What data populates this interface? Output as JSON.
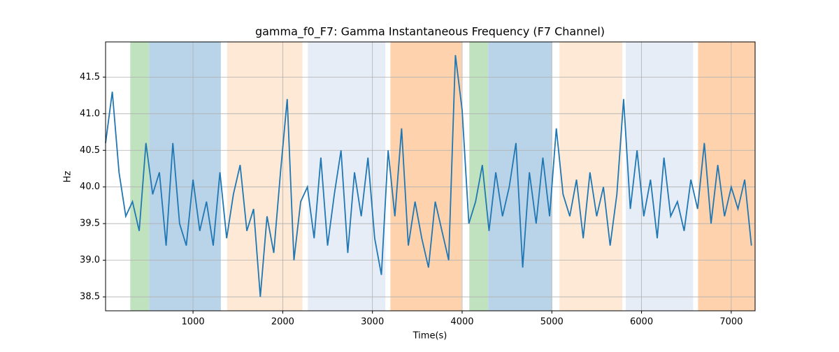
{
  "chart_data": {
    "type": "line",
    "title": "gamma_f0_F7: Gamma Instantaneous Frequency (F7 Channel)",
    "xlabel": "Time(s)",
    "ylabel": "Hz",
    "xlim": [
      25,
      7266
    ],
    "ylim": [
      38.31,
      41.98
    ],
    "xticks": [
      1000,
      2000,
      3000,
      4000,
      5000,
      6000,
      7000
    ],
    "yticks": [
      38.5,
      {
        "value": 39,
        "label": "39.0"
      },
      39.5,
      {
        "value": 40,
        "label": "40.0"
      },
      40.5,
      {
        "value": 41,
        "label": "41.0"
      },
      41.5
    ],
    "grid": true,
    "spans": [
      {
        "start": 300,
        "end": 510,
        "color": "#c0e2bf"
      },
      {
        "start": 510,
        "end": 1310,
        "color": "#b9d3e8"
      },
      {
        "start": 1380,
        "end": 2220,
        "color": "#fde9d5"
      },
      {
        "start": 2280,
        "end": 3145,
        "color": "#e6edf7"
      },
      {
        "start": 3200,
        "end": 3995,
        "color": "#fdd2ad"
      },
      {
        "start": 4080,
        "end": 4290,
        "color": "#c0e2bf"
      },
      {
        "start": 4290,
        "end": 5000,
        "color": "#b9d3e8"
      },
      {
        "start": 5085,
        "end": 5785,
        "color": "#fde9d5"
      },
      {
        "start": 5825,
        "end": 6575,
        "color": "#e6edf7"
      },
      {
        "start": 6630,
        "end": 7266,
        "color": "#fdd2ad"
      }
    ],
    "x": [
      25,
      100,
      175,
      250,
      325,
      400,
      475,
      550,
      625,
      700,
      775,
      850,
      925,
      1000,
      1075,
      1150,
      1225,
      1300,
      1375,
      1450,
      1525,
      1600,
      1675,
      1750,
      1825,
      1900,
      1975,
      2050,
      2125,
      2200,
      2275,
      2350,
      2425,
      2500,
      2575,
      2650,
      2725,
      2800,
      2875,
      2950,
      3025,
      3100,
      3175,
      3250,
      3325,
      3400,
      3475,
      3550,
      3625,
      3700,
      3775,
      3850,
      3925,
      4000,
      4075,
      4150,
      4225,
      4300,
      4375,
      4450,
      4525,
      4600,
      4675,
      4750,
      4825,
      4900,
      4975,
      5050,
      5125,
      5200,
      5275,
      5350,
      5425,
      5500,
      5575,
      5650,
      5725,
      5800,
      5875,
      5950,
      6025,
      6100,
      6175,
      6250,
      6325,
      6400,
      6475,
      6550,
      6625,
      6700,
      6775,
      6850,
      6925,
      7000,
      7075,
      7150,
      7225
    ],
    "series": [
      {
        "color": "#1f77b4",
        "values": [
          40.6,
          41.3,
          40.2,
          39.6,
          39.8,
          39.4,
          40.6,
          39.9,
          40.2,
          39.2,
          40.6,
          39.5,
          39.2,
          40.1,
          39.4,
          39.8,
          39.2,
          40.2,
          39.3,
          39.9,
          40.3,
          39.4,
          39.7,
          38.5,
          39.6,
          39.1,
          40.2,
          41.2,
          39.0,
          39.8,
          40.0,
          39.3,
          40.4,
          39.2,
          39.9,
          40.5,
          39.1,
          40.2,
          39.6,
          40.4,
          39.3,
          38.8,
          40.5,
          39.6,
          40.8,
          39.2,
          39.8,
          39.3,
          38.9,
          39.8,
          39.4,
          39.0,
          41.8,
          41.05,
          39.5,
          39.8,
          40.3,
          39.4,
          40.2,
          39.6,
          40.0,
          40.6,
          38.9,
          40.2,
          39.5,
          40.4,
          39.6,
          40.8,
          39.9,
          39.6,
          40.1,
          39.3,
          40.2,
          39.6,
          40.0,
          39.2,
          39.9,
          41.2,
          39.7,
          40.5,
          39.6,
          40.1,
          39.3,
          40.4,
          39.6,
          39.8,
          39.4,
          40.1,
          39.7,
          40.6,
          39.5,
          40.3,
          39.6,
          40.0,
          39.7,
          40.1,
          39.2
        ]
      }
    ]
  }
}
